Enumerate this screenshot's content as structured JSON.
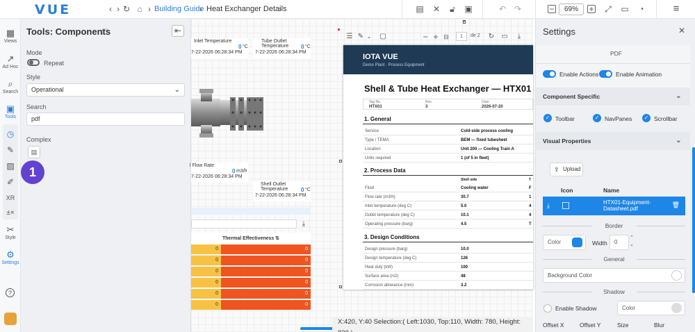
{
  "app": {
    "logo": "VUE"
  },
  "breadcrumb": {
    "root": "Building Guide",
    "current": "Heat Exchanger Details"
  },
  "toolbar": {
    "zoom": "69%"
  },
  "rail": [
    {
      "label": "Views",
      "icon": "views-icon",
      "glyph": "▦"
    },
    {
      "label": "Ad Hoc",
      "icon": "chart-icon",
      "glyph": "↗"
    },
    {
      "label": "Search",
      "icon": "search-icon",
      "glyph": "⌕"
    },
    {
      "label": "Tools",
      "icon": "toolbox-icon",
      "glyph": "▣"
    },
    {
      "label": "Style",
      "icon": "style-icon",
      "glyph": "✂"
    },
    {
      "label": "Settings",
      "icon": "gear-icon",
      "glyph": "⚙"
    }
  ],
  "tools_panel": {
    "title": "Tools: Components",
    "mode_label": "Mode",
    "repeat_label": "Repeat",
    "style_label": "Style",
    "style_value": "Operational",
    "search_label": "Search",
    "search_value": "pdf",
    "complex_label": "Complex",
    "badge": "1"
  },
  "canvas": {
    "tag_tl_title": "Inlet Temperature",
    "tag_tl_value": "0",
    "tag_tl_unit": "°C",
    "tag_tl_time": "7-22-2026 06:28:34 PM",
    "tag_tr_title": "Tube Outlet Temperature",
    "tag_tr_value": "0",
    "tag_tr_unit": "°C",
    "tag_tr_time": "7-22-2026 06:28:34 PM",
    "tag_bl_title": "l Flow Rate",
    "tag_bl_value": "0",
    "tag_bl_unit": "m3/h",
    "tag_bl_time": "7-22-2026 06:28:34 PM",
    "tag_br_title": "Shell Outlet Temperature",
    "tag_br_value": "0",
    "tag_br_unit": "°C",
    "tag_br_time": "7-22-2026 06:28:34 PM",
    "table_header": "Thermal Effectiveness",
    "table_values": [
      "0",
      "0",
      "0",
      "0",
      "0",
      "0"
    ]
  },
  "pdf": {
    "page_input": "1",
    "page_total": "de 2",
    "brand": "IOTA VUE",
    "brand_sub": "Demo Plant  ·  Process Equipment",
    "title": "Shell & Tube Heat Exchanger — HTX01",
    "meta": [
      {
        "k": "Tag No.",
        "v": "HTX01"
      },
      {
        "k": "Rev",
        "v": "3"
      },
      {
        "k": "Date",
        "v": "2026-07-20"
      }
    ],
    "sec_general": "1.  General",
    "general": [
      {
        "k": "Service",
        "v": "Cold-side process cooling"
      },
      {
        "k": "Type / TEMA",
        "v": "BEM — fixed tubesheet"
      },
      {
        "k": "Location",
        "v": "Unit 200 — Cooling Train A"
      },
      {
        "k": "Units required",
        "v": "1 (of 5 in fleet)"
      }
    ],
    "sec_process": "2.  Process Data",
    "process_head": "Shell side",
    "process_head2": "T",
    "process": [
      {
        "k": "Fluid",
        "v": "Cooling water",
        "v2": "F"
      },
      {
        "k": "Flow rate (m3/h)",
        "v": "30.7",
        "v2": "1"
      },
      {
        "k": "Inlet temperature (deg C)",
        "v": "5.0",
        "v2": "4"
      },
      {
        "k": "Outlet temperature (deg C)",
        "v": "10.1",
        "v2": "4"
      },
      {
        "k": "Operating pressure (barg)",
        "v": "4.5",
        "v2": "T"
      }
    ],
    "sec_design": "3.  Design Conditions",
    "design": [
      {
        "k": "Design pressure (barg)",
        "v": "10.0"
      },
      {
        "k": "Design temperature (deg C)",
        "v": "126"
      },
      {
        "k": "Heat duty (kW)",
        "v": "100"
      },
      {
        "k": "Surface area (m2)",
        "v": "48"
      },
      {
        "k": "Corrosion allowance (mm)",
        "v": "3.2"
      }
    ]
  },
  "status_bar": "X:420, Y:40  Selection:( Left:1030, Top:110, Width: 780, Height: 830 )",
  "settings": {
    "title": "Settings",
    "pdf_label": "PDF",
    "enable_actions": "Enable Actions",
    "enable_animation": "Enable Animation",
    "component_specific": "Component Specific",
    "chk_toolbar": "Toolbar",
    "chk_navpanes": "NavPanes",
    "chk_scrollbar": "Scrollbar",
    "visual_properties": "Visual Properties",
    "upload": "Upload",
    "col_icon": "Icon",
    "col_name": "Name",
    "file_name": "HTX01-Equipment-Datasheet.pdf",
    "border_label": "Border",
    "color_label": "Color",
    "width_label": "Width",
    "width_value": "0",
    "general_label": "General",
    "background_color": "Background Color",
    "shadow_label": "Shadow",
    "enable_shadow": "Enable Shadow",
    "shadow_color": "Color",
    "offset_x": "Offset X",
    "offset_y": "Offset Y",
    "size": "Size",
    "blur": "Blur",
    "accent": "#1d86e6"
  }
}
